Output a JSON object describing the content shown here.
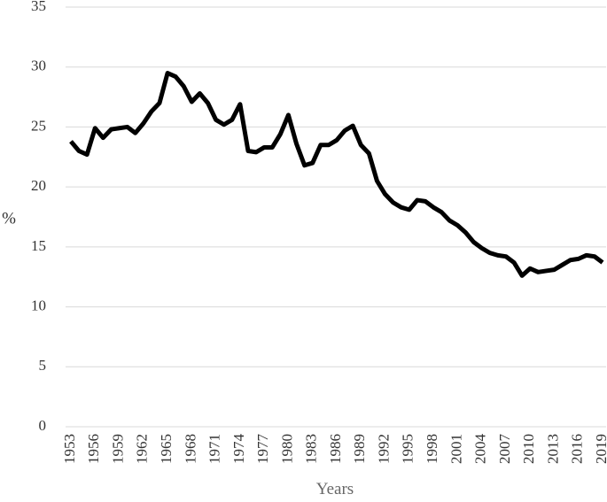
{
  "chart_data": {
    "type": "line",
    "y_label": "%",
    "x_label": "Years",
    "x": [
      1953,
      1954,
      1955,
      1956,
      1957,
      1958,
      1959,
      1960,
      1961,
      1962,
      1963,
      1964,
      1965,
      1966,
      1967,
      1968,
      1969,
      1970,
      1971,
      1972,
      1973,
      1974,
      1975,
      1976,
      1977,
      1978,
      1979,
      1980,
      1981,
      1982,
      1983,
      1984,
      1985,
      1986,
      1987,
      1988,
      1989,
      1990,
      1991,
      1992,
      1993,
      1994,
      1995,
      1996,
      1997,
      1998,
      1999,
      2000,
      2001,
      2002,
      2003,
      2004,
      2005,
      2006,
      2007,
      2008,
      2009,
      2010,
      2011,
      2012,
      2013,
      2014,
      2015,
      2016,
      2017,
      2018,
      2019
    ],
    "values": [
      23.8,
      23.0,
      22.7,
      24.9,
      24.1,
      24.8,
      24.9,
      25.0,
      24.5,
      25.3,
      26.3,
      27.0,
      29.5,
      29.2,
      28.4,
      27.1,
      27.8,
      27.0,
      25.6,
      25.2,
      25.6,
      26.9,
      23.0,
      22.9,
      23.3,
      23.3,
      24.4,
      26.0,
      23.6,
      21.8,
      22.0,
      23.5,
      23.5,
      23.9,
      24.7,
      25.1,
      23.5,
      22.8,
      20.5,
      19.4,
      18.7,
      18.3,
      18.1,
      18.9,
      18.8,
      18.3,
      17.9,
      17.2,
      16.8,
      16.2,
      15.4,
      14.9,
      14.5,
      14.3,
      14.2,
      13.7,
      12.6,
      13.2,
      12.9,
      13.0,
      13.1,
      13.5,
      13.9,
      14.0,
      14.3,
      14.2,
      13.7
    ],
    "color": "#000000",
    "xlim": [
      1953,
      2019
    ],
    "xticks": [
      1953,
      1956,
      1959,
      1962,
      1965,
      1968,
      1971,
      1974,
      1977,
      1980,
      1983,
      1986,
      1989,
      1992,
      1995,
      1998,
      2001,
      2004,
      2007,
      2010,
      2013,
      2016,
      2019
    ],
    "ylim": [
      0,
      35
    ],
    "yticks": [
      0,
      5,
      10,
      15,
      20,
      25,
      30,
      35
    ],
    "grid": true
  }
}
